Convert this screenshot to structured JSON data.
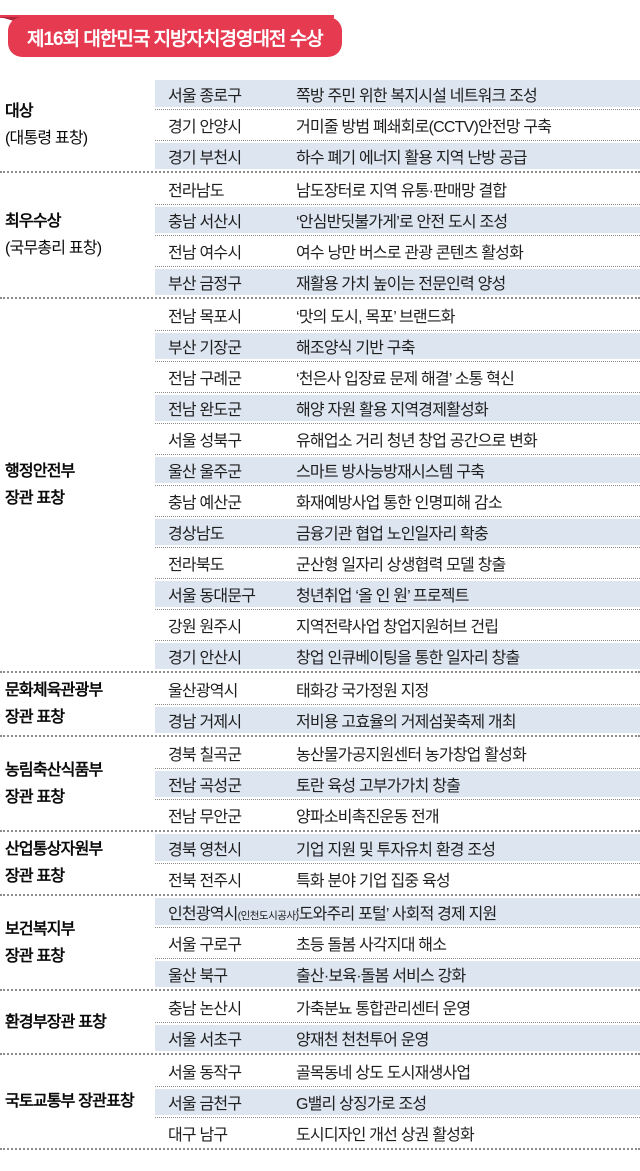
{
  "header": {
    "badge": "제16회 대한민국 지방자치경영대전 수상"
  },
  "colors": {
    "accent_red": "#e63a50",
    "accent_red_dark": "#b0273b",
    "row_shade_blue": "#dce5f0",
    "dotted_line_gray": "#8c8c8c",
    "text_dark": "#1f1f1f"
  },
  "table": {
    "sections": [
      {
        "category_lines": [
          {
            "text": "대상",
            "bold": true
          },
          {
            "text": "(대통령 표창)",
            "bold": false
          }
        ],
        "rows": [
          {
            "region": "서울 종로구",
            "project": "쪽방 주민 위한 복지시설 네트워크 조성"
          },
          {
            "region": "경기 안양시",
            "project": "거미줄 방범 폐쇄회로(CCTV)안전망 구축"
          },
          {
            "region": "경기 부천시",
            "project": "하수 폐기 에너지 활용 지역 난방 공급"
          }
        ]
      },
      {
        "category_lines": [
          {
            "text": "최우수상",
            "bold": true
          },
          {
            "text": "(국무총리 표창)",
            "bold": false
          }
        ],
        "rows": [
          {
            "region": "전라남도",
            "project": "남도장터로 지역 유통·판매망 결합"
          },
          {
            "region": "충남 서산시",
            "project": "‘안심반딧불가게’로 안전 도시 조성"
          },
          {
            "region": "전남 여수시",
            "project": "여수 낭만 버스로 관광 콘텐츠 활성화"
          },
          {
            "region": "부산 금정구",
            "project": "재활용 가치 높이는 전문인력 양성"
          }
        ]
      },
      {
        "category_lines": [
          {
            "text": "행정안전부",
            "bold": true
          },
          {
            "text": "장관 표창",
            "bold": true
          }
        ],
        "rows": [
          {
            "region": "전남 목포시",
            "project": "‘맛의 도시, 목포’ 브랜드화"
          },
          {
            "region": "부산 기장군",
            "project": "해조양식 기반 구축"
          },
          {
            "region": "전남 구례군",
            "project": "‘천은사 입장료 문제 해결’ 소통 혁신"
          },
          {
            "region": "전남 완도군",
            "project": "해양 자원 활용 지역경제활성화"
          },
          {
            "region": "서울 성북구",
            "project": "유해업소 거리 청년 창업 공간으로 변화"
          },
          {
            "region": "울산 울주군",
            "project": "스마트 방사능방재시스템 구축"
          },
          {
            "region": "충남 예산군",
            "project": "화재예방사업 통한 인명피해 감소"
          },
          {
            "region": "경상남도",
            "project": "금융기관 협업 노인일자리 확충"
          },
          {
            "region": "전라북도",
            "project": "군산형 일자리 상생협력 모델 창출"
          },
          {
            "region": "서울 동대문구",
            "project": "청년취업 ‘올 인 원’ 프로젝트"
          },
          {
            "region": "강원 원주시",
            "project": "지역전략사업 창업지원허브 건립"
          },
          {
            "region": "경기 안산시",
            "project": "창업 인큐베이팅을 통한 일자리 창출"
          }
        ]
      },
      {
        "category_lines": [
          {
            "text": "문화체육관광부",
            "bold": true
          },
          {
            "text": "장관 표창",
            "bold": true
          }
        ],
        "rows": [
          {
            "region": "울산광역시",
            "project": "태화강 국가정원 지정"
          },
          {
            "region": "경남 거제시",
            "project": "저비용 고효율의 거제섬꽃축제 개최"
          }
        ]
      },
      {
        "category_lines": [
          {
            "text": "농림축산식품부",
            "bold": true
          },
          {
            "text": "장관 표창",
            "bold": true
          }
        ],
        "rows": [
          {
            "region": "경북 칠곡군",
            "project": "농산물가공지원센터 농가창업 활성화"
          },
          {
            "region": "전남 곡성군",
            "project": "토란 육성 고부가가치 창출"
          },
          {
            "region": "전남 무안군",
            "project": "양파소비촉진운동 전개"
          }
        ]
      },
      {
        "category_lines": [
          {
            "text": "산업통상자원부",
            "bold": true
          },
          {
            "text": "장관 표창",
            "bold": true
          }
        ],
        "rows": [
          {
            "region": "경북 영천시",
            "project": "기업 지원 및 투자유치 환경 조성"
          },
          {
            "region": "전북 전주시",
            "project": "특화 분야 기업 집중 육성"
          }
        ]
      },
      {
        "category_lines": [
          {
            "text": "보건복지부",
            "bold": true
          },
          {
            "text": "장관 표창",
            "bold": true
          }
        ],
        "rows": [
          {
            "region": "인천광역시",
            "region_note": "(인천도시공사)",
            "project": "‘도와주리 포털’ 사회적 경제 지원"
          },
          {
            "region": "서울 구로구",
            "project": "초등 돌봄 사각지대 해소"
          },
          {
            "region": "울산 북구",
            "project": "출산·보육·돌봄 서비스 강화"
          }
        ]
      },
      {
        "category_lines": [
          {
            "text": "환경부장관 표창",
            "bold": true
          }
        ],
        "rows": [
          {
            "region": "충남 논산시",
            "project": "가축분뇨 통합관리센터 운영"
          },
          {
            "region": "서울 서초구",
            "project": "양재천 천천투어 운영"
          }
        ]
      },
      {
        "category_lines": [
          {
            "text": "국토교통부 장관표창",
            "bold": true
          }
        ],
        "rows": [
          {
            "region": "서울 동작구",
            "project": "골목동네 상도 도시재생사업"
          },
          {
            "region": "서울 금천구",
            "project": "G밸리 상징가로 조성"
          },
          {
            "region": "대구 남구",
            "project": "도시디자인 개선 상권 활성화"
          }
        ]
      }
    ]
  }
}
